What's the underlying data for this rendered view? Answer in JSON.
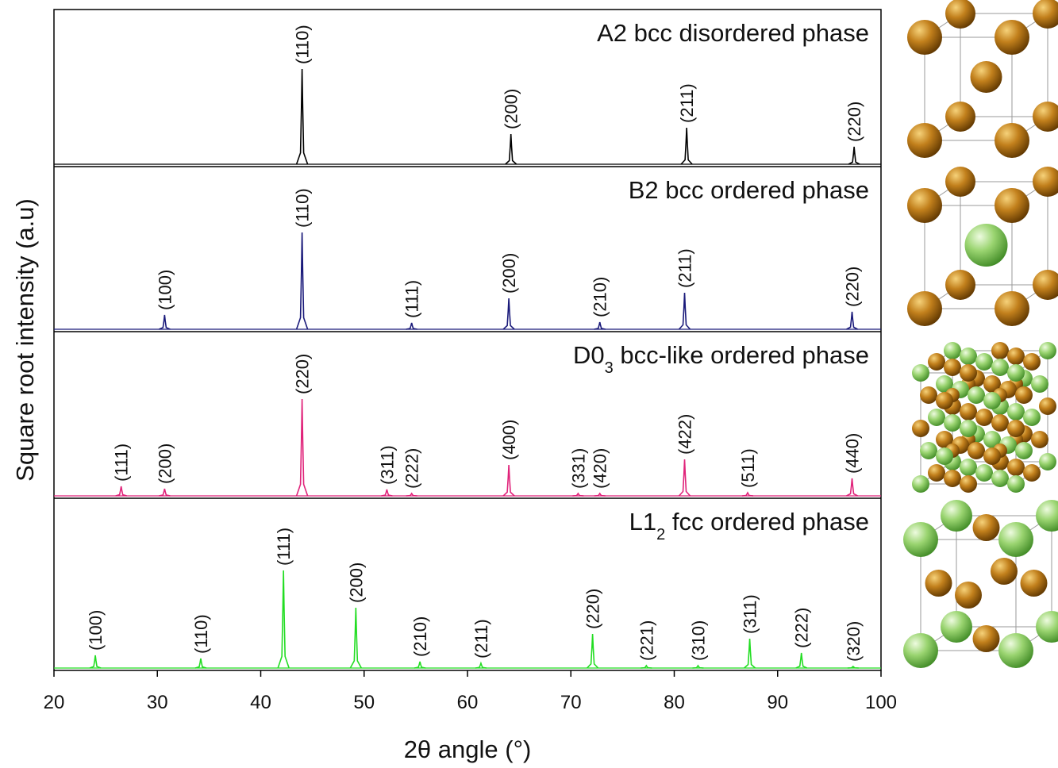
{
  "chart_data": [
    {
      "type": "peaks",
      "title_parts": [
        "A2 bcc disordered phase"
      ],
      "color": "#000000",
      "x": [
        44.0,
        64.2,
        81.2,
        97.4
      ],
      "values": [
        60,
        19,
        23,
        11
      ],
      "peak_labels": [
        "(110)",
        "(200)",
        "(211)",
        "(220)"
      ],
      "xlim": [
        20,
        100
      ],
      "ylim": [
        0,
        100
      ],
      "ylabel": "Square root intensity (a.u)"
    },
    {
      "type": "peaks",
      "title_parts": [
        "B2 bcc ordered phase"
      ],
      "color": "#1a1a7a",
      "x": [
        30.7,
        44.0,
        54.6,
        64.0,
        72.8,
        81.0,
        97.2
      ],
      "values": [
        9,
        61,
        4,
        19.5,
        4.5,
        23,
        11
      ],
      "peak_labels": [
        "(100)",
        "(110)",
        "(111)",
        "(200)",
        "(210)",
        "(211)",
        "(220)"
      ],
      "xlim": [
        20,
        100
      ],
      "ylim": [
        0,
        100
      ]
    },
    {
      "type": "peaks",
      "title_parts": [
        "D0",
        "3",
        " bcc-like ordered phase"
      ],
      "color": "#e0237a",
      "x": [
        26.5,
        30.7,
        44.0,
        52.2,
        54.6,
        64.0,
        70.7,
        72.8,
        81.0,
        87.1,
        97.2
      ],
      "values": [
        6,
        4.5,
        61,
        4,
        1.5,
        19.5,
        1.5,
        1.5,
        23,
        2,
        11
      ],
      "peak_labels": [
        "(111)",
        "(200)",
        "(220)",
        "(311)",
        "(222)",
        "(400)",
        "(331)",
        "(420)",
        "(422)",
        "(511)",
        "(440)"
      ],
      "xlim": [
        20,
        100
      ],
      "ylim": [
        0,
        100
      ]
    },
    {
      "type": "peaks",
      "title_parts": [
        "L1",
        "2",
        " fcc ordered phase"
      ],
      "color": "#22dd22",
      "x": [
        24.0,
        34.2,
        42.2,
        49.2,
        55.4,
        61.3,
        72.1,
        77.3,
        82.3,
        87.3,
        92.3,
        97.3
      ],
      "values": [
        8,
        6,
        61.5,
        38,
        4,
        3,
        21.5,
        1.5,
        1.5,
        18.5,
        9.5,
        1
      ],
      "peak_labels": [
        "(100)",
        "(110)",
        "(111)",
        "(200)",
        "(210)",
        "(211)",
        "(220)",
        "(221)",
        "(310)",
        "(311)",
        "(222)",
        "(320)"
      ],
      "xlim": [
        20,
        100
      ],
      "ylim": [
        0,
        100
      ],
      "xticks": [
        20,
        30,
        40,
        50,
        60,
        70,
        80,
        90,
        100
      ],
      "xlabel": "2θ angle (°)"
    }
  ]
}
